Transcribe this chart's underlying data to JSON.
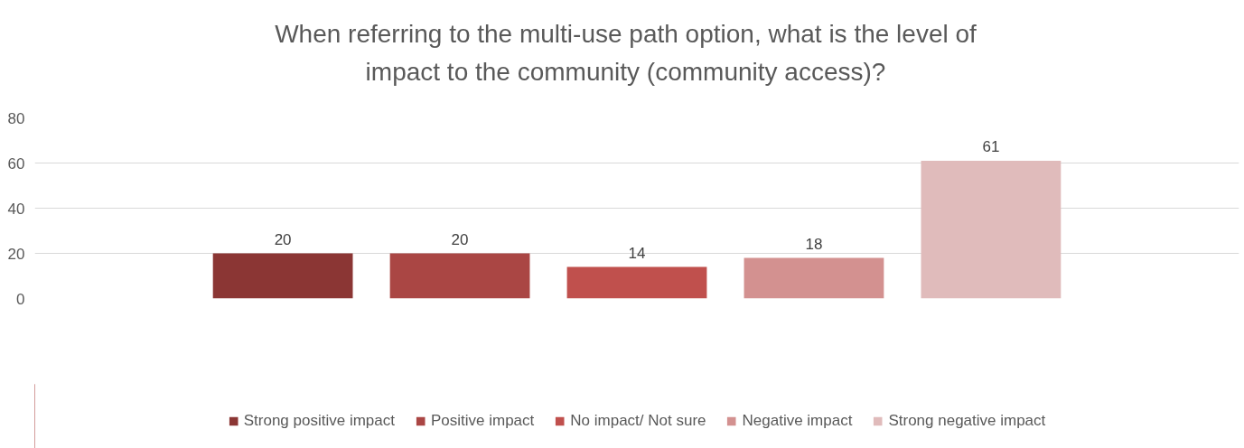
{
  "chart_data": {
    "type": "bar",
    "title": "When referring to the multi-use path option, what is the level of impact to the community (community access)?",
    "categories": [
      null
    ],
    "series": [
      {
        "name": "Strong positive impact",
        "color": "#8b3634",
        "values": [
          20
        ]
      },
      {
        "name": "Positive impact",
        "color": "#aa4644",
        "values": [
          20
        ]
      },
      {
        "name": "No impact/ Not sure",
        "color": "#c0504d",
        "values": [
          14
        ]
      },
      {
        "name": "Negative impact",
        "color": "#d39190",
        "values": [
          18
        ]
      },
      {
        "name": "Strong negative impact",
        "color": "#e0bbbb",
        "values": [
          61
        ]
      }
    ],
    "ylim": [
      0,
      80
    ],
    "yticks": [
      0,
      20,
      40,
      60,
      80
    ],
    "grid": "y",
    "legend": "bottom",
    "data_labels": true
  }
}
